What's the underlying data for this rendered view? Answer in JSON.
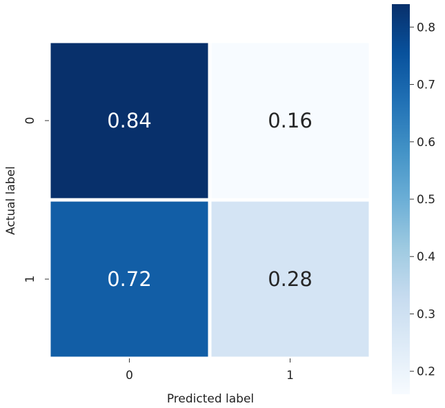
{
  "chart_data": {
    "type": "heatmap",
    "title": "",
    "xlabel": "Predicted label",
    "ylabel": "Actual label",
    "x_categories": [
      "0",
      "1"
    ],
    "y_categories": [
      "0",
      "1"
    ],
    "values": [
      [
        0.84,
        0.16
      ],
      [
        0.72,
        0.28
      ]
    ],
    "value_labels": [
      [
        "0.84",
        "0.16"
      ],
      [
        "0.72",
        "0.28"
      ]
    ],
    "colormap": "Blues",
    "colorbar": {
      "vmin": 0.16,
      "vmax": 0.84,
      "ticks": [
        0.2,
        0.3,
        0.4,
        0.5,
        0.6,
        0.7,
        0.8
      ],
      "tick_labels": [
        "0.2",
        "0.3",
        "0.4",
        "0.5",
        "0.6",
        "0.7",
        "0.8"
      ]
    },
    "grid": false,
    "colors": {
      "low": "#f7fbff",
      "high": "#08306b",
      "text_dark": "#262626",
      "text_light": "#ffffff"
    }
  }
}
